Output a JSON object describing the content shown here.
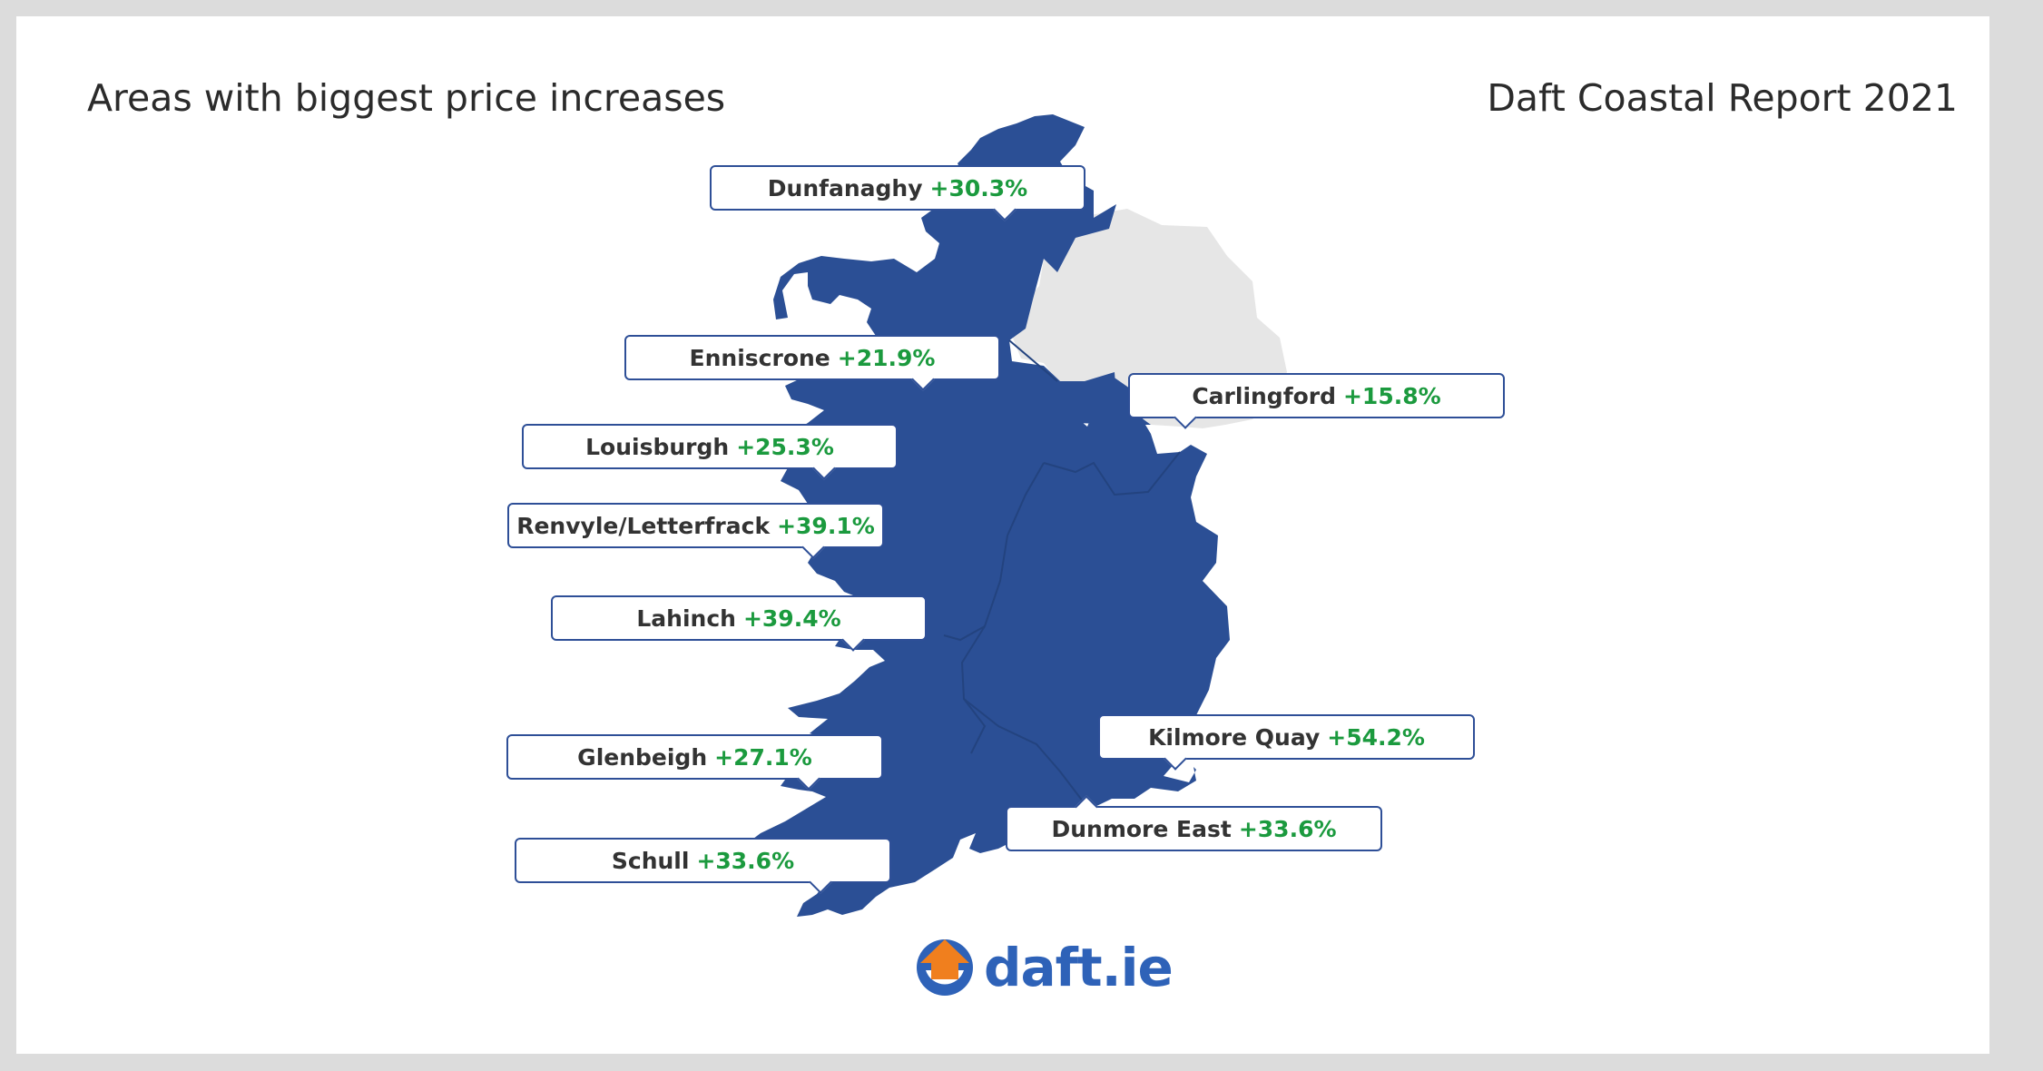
{
  "header": {
    "title": "Areas with biggest price increases",
    "report": "Daft Coastal Report 2021"
  },
  "colors": {
    "republic": "#2b4f95",
    "northern_ireland": "#e6e6e6",
    "increase": "#1b9a3e",
    "callout_border": "#2e4f97",
    "brand_blue": "#2e62b8",
    "brand_orange": "#f07f1e"
  },
  "locations": [
    {
      "name": "Dunfanaghy",
      "change": "+30.3%"
    },
    {
      "name": "Enniscrone",
      "change": "+21.9%"
    },
    {
      "name": "Carlingford",
      "change": "+15.8%"
    },
    {
      "name": "Louisburgh",
      "change": "+25.3%"
    },
    {
      "name": "Renvyle/Letterfrack",
      "change": "+39.1%"
    },
    {
      "name": "Lahinch",
      "change": "+39.4%"
    },
    {
      "name": "Kilmore Quay",
      "change": "+54.2%"
    },
    {
      "name": "Glenbeigh",
      "change": "+27.1%"
    },
    {
      "name": "Dunmore East",
      "change": "+33.6%"
    },
    {
      "name": "Schull",
      "change": "+33.6%"
    }
  ],
  "logo": {
    "text": "daft.ie",
    "icon": "house-arrow-icon"
  }
}
